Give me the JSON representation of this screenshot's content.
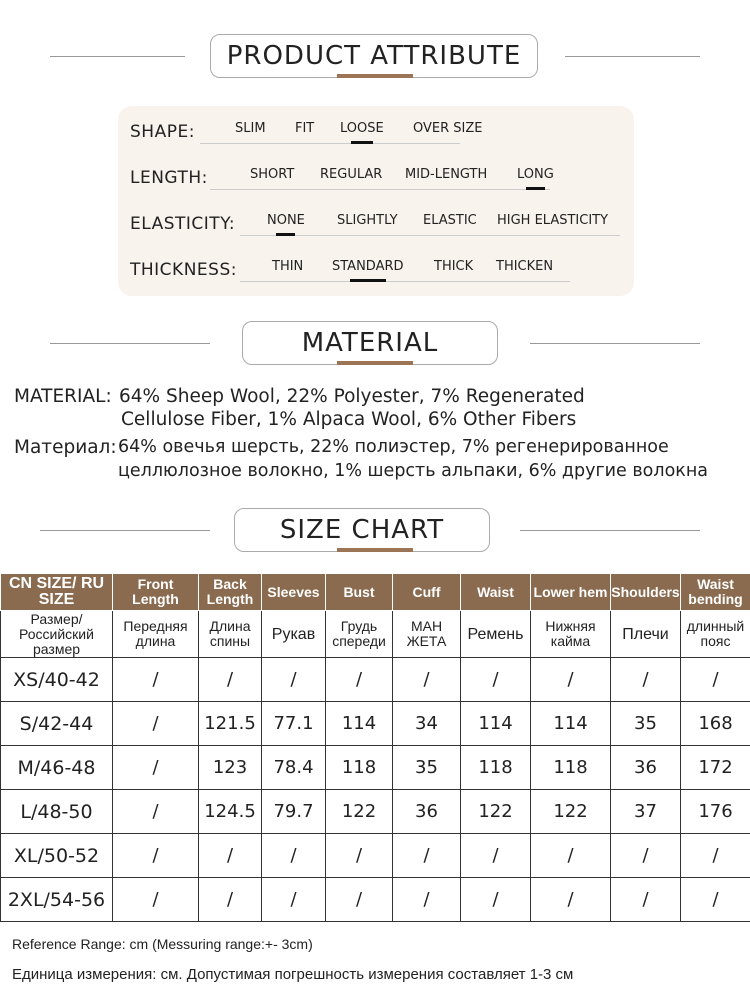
{
  "sections": {
    "attribute": "PRODUCT ATTRIBUTE",
    "material": "MATERIAL",
    "size": "SIZE CHART"
  },
  "attributes": [
    {
      "label": "SHAPE:",
      "options": [
        "SLIM",
        "FIT",
        "LOOSE",
        "OVER SIZE"
      ],
      "selected": "LOOSE"
    },
    {
      "label": "LENGTH:",
      "options": [
        "SHORT",
        "REGULAR",
        "MID-LENGTH",
        "LONG"
      ],
      "selected": "LONG"
    },
    {
      "label": "ELASTICITY:",
      "options": [
        "NONE",
        "SLIGHTLY",
        "ELASTIC",
        "HIGH ELASTICITY"
      ],
      "selected": "NONE"
    },
    {
      "label": "THICKNESS:",
      "options": [
        "THIN",
        "STANDARD",
        "THICK",
        "THICKEN"
      ],
      "selected": "STANDARD"
    }
  ],
  "material": {
    "en_label": "MATERIAL:",
    "en_line1": "64% Sheep Wool, 22% Polyester, 7% Regenerated",
    "en_line2": "Cellulose Fiber, 1% Alpaca Wool, 6% Other Fibers",
    "ru_label": "Материал:",
    "ru_line1": "64% овечья шерсть, 22% полиэстер, 7% регенерированное",
    "ru_line2": "целлюлозное волокно, 1% шерсть альпаки, 6% другие волокна"
  },
  "table": {
    "header_en": [
      "CN SIZE/ RU SIZE",
      "Front Length",
      "Back Length",
      "Sleeves",
      "Bust",
      "Cuff",
      "Waist",
      "Lower hem",
      "Shoulders",
      "Waist bending"
    ],
    "header_ru": [
      "Размер/ Российский размер",
      "Передняя длина",
      "Длина спины",
      "Рукав",
      "Грудь спереди",
      "МАН ЖЕТА",
      "Ремень",
      "Нижняя кайма",
      "Плечи",
      "длинный пояс"
    ],
    "rows": [
      [
        "XS/40-42",
        "/",
        "/",
        "/",
        "/",
        "/",
        "/",
        "/",
        "/",
        "/"
      ],
      [
        "S/42-44",
        "/",
        "121.5",
        "77.1",
        "114",
        "34",
        "114",
        "114",
        "35",
        "168"
      ],
      [
        "M/46-48",
        "/",
        "123",
        "78.4",
        "118",
        "35",
        "118",
        "118",
        "36",
        "172"
      ],
      [
        "L/48-50",
        "/",
        "124.5",
        "79.7",
        "122",
        "36",
        "122",
        "122",
        "37",
        "176"
      ],
      [
        "XL/50-52",
        "/",
        "/",
        "/",
        "/",
        "/",
        "/",
        "/",
        "/",
        "/"
      ],
      [
        "2XL/54-56",
        "/",
        "/",
        "/",
        "/",
        "/",
        "/",
        "/",
        "/",
        "/"
      ]
    ]
  },
  "footer": {
    "en": "Reference Range: cm (Messuring range:+- 3cm)",
    "ru": "Единица измерения: см. Допустимая погрешность измерения составляет 1-3 см"
  },
  "colors": {
    "header_bg": "#8a6b4f",
    "accent": "#9b7556",
    "panel_bg": "#f8f3ec"
  }
}
